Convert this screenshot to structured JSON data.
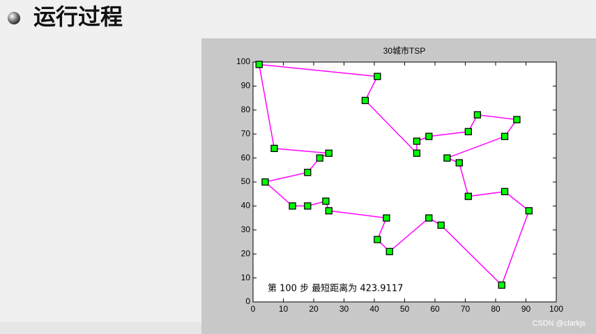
{
  "heading": "运行过程",
  "watermark": "CSDN @clarkjs",
  "chart_data": {
    "type": "line",
    "title": "30城市TSP",
    "annotation": "第 100 步  最短距离为 423.9117",
    "closed": true,
    "series": [
      {
        "color": "#ff00ff",
        "marker_color": "#00ff00",
        "x": [
          2,
          41,
          37,
          54,
          54,
          58,
          71,
          74,
          87,
          83,
          64,
          68,
          71,
          83,
          91,
          82,
          62,
          58,
          45,
          41,
          44,
          25,
          24,
          18,
          13,
          4,
          18,
          22,
          25,
          7
        ],
        "values": [
          99,
          94,
          84,
          62,
          67,
          69,
          71,
          78,
          76,
          69,
          60,
          58,
          44,
          46,
          38,
          7,
          32,
          35,
          21,
          26,
          35,
          38,
          42,
          40,
          40,
          50,
          54,
          60,
          62,
          64
        ]
      }
    ],
    "xlim": [
      0,
      100
    ],
    "ylim": [
      0,
      100
    ],
    "xticks": [
      0,
      10,
      20,
      30,
      40,
      50,
      60,
      70,
      80,
      90,
      100
    ],
    "yticks": [
      0,
      10,
      20,
      30,
      40,
      50,
      60,
      70,
      80,
      90,
      100
    ]
  }
}
